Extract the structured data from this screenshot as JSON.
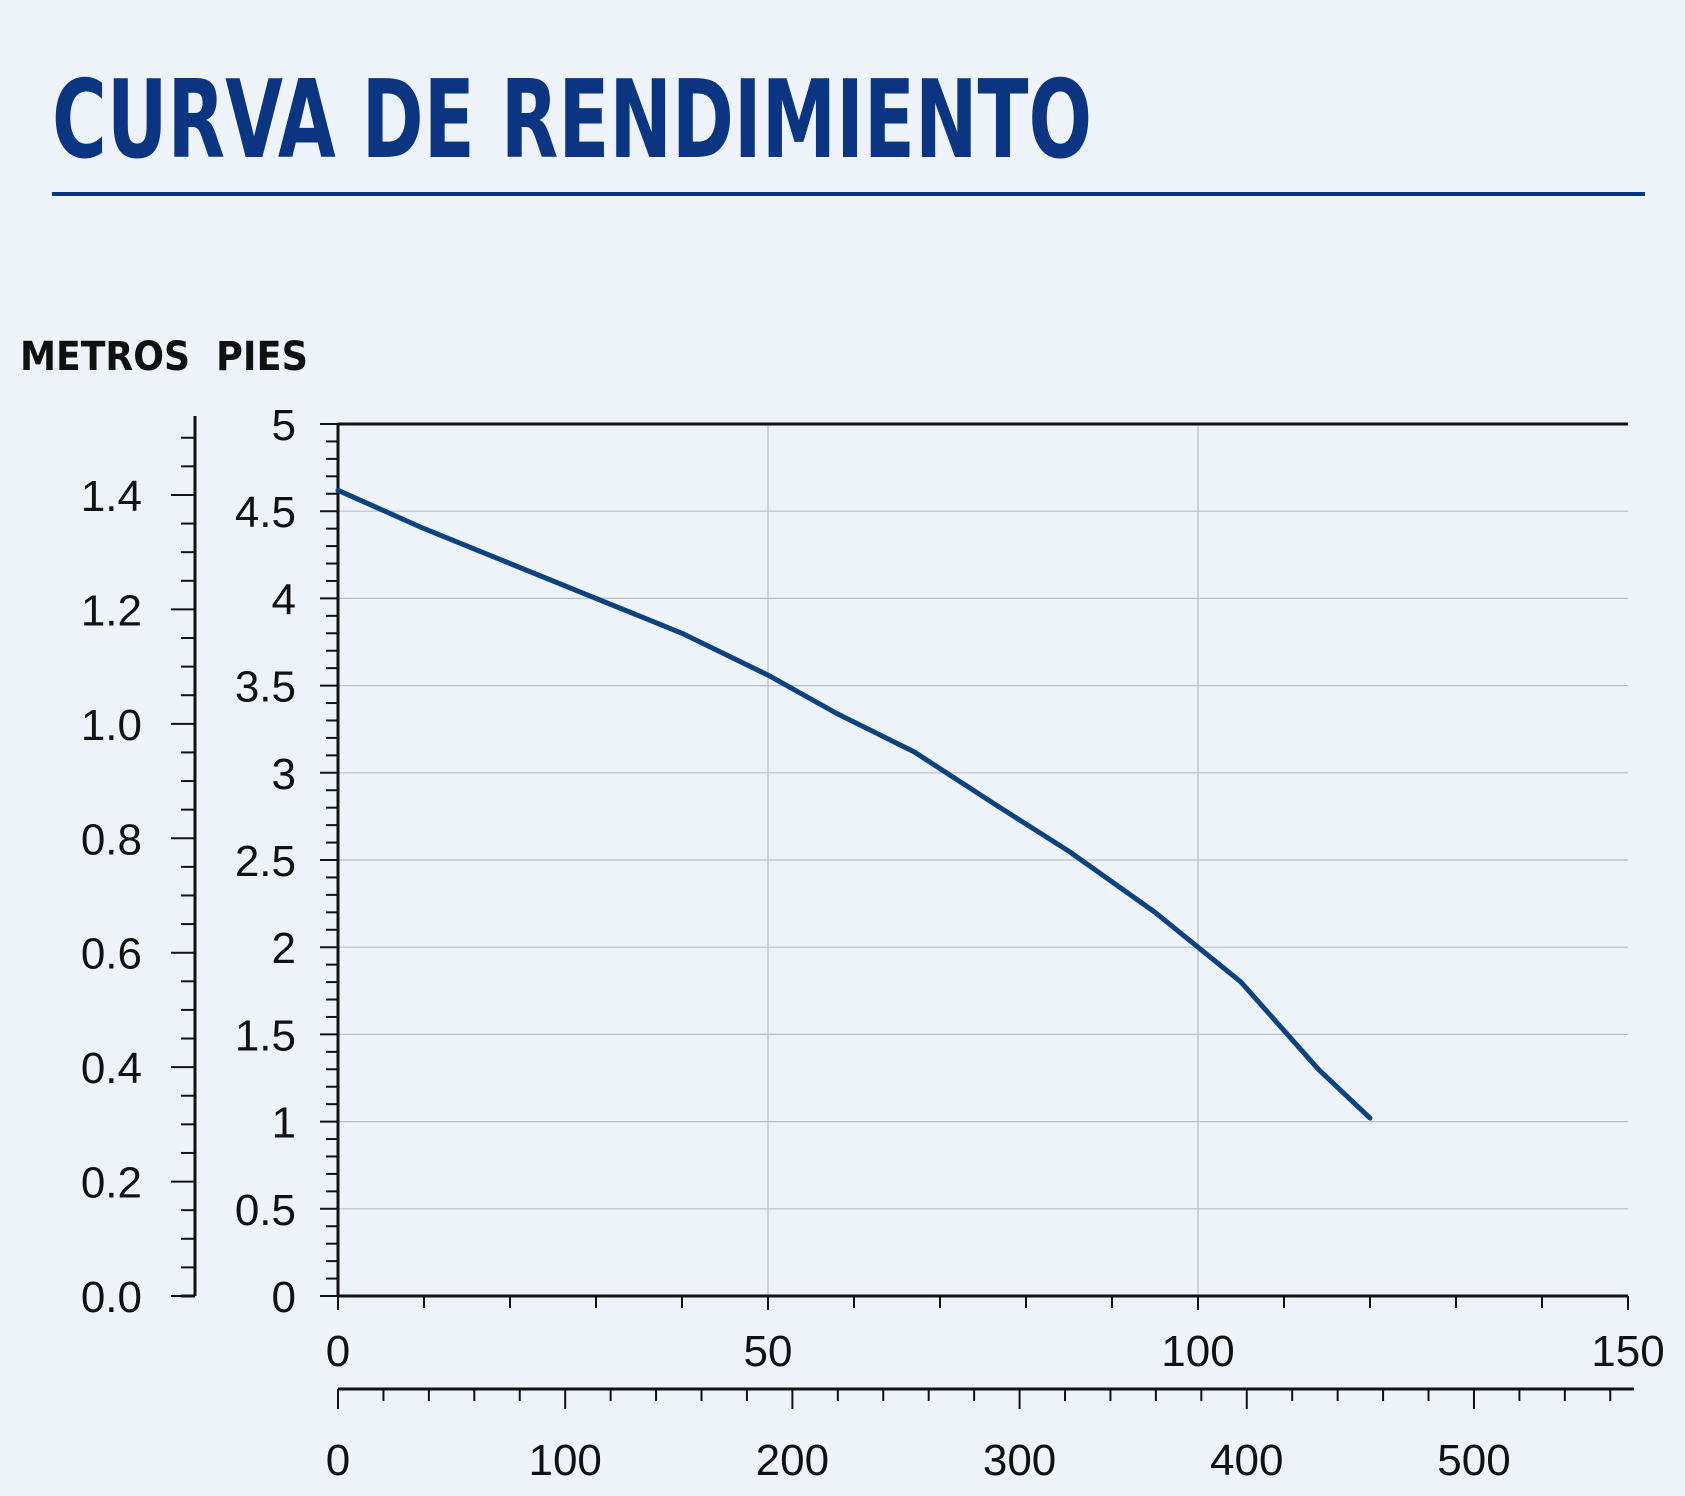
{
  "colors": {
    "background": "#eef3fa",
    "title": "#0b3481",
    "curve": "#0d4280",
    "grid": "#b9bec6",
    "axis": "#111111"
  },
  "chart_data": {
    "type": "line",
    "title": "CURVA DE RENDIMIENTO",
    "ylabel_left": "METROS",
    "ylabel_right": "PIES",
    "y_pies": {
      "lim": [
        0,
        5
      ],
      "ticks": [
        "0",
        "0.5",
        "1",
        "1.5",
        "2",
        "2.5",
        "3",
        "3.5",
        "4",
        "4.5",
        "5"
      ]
    },
    "y_metros": {
      "lim": [
        0,
        1.524
      ],
      "ticks": [
        "0.0",
        "0.2",
        "0.4",
        "0.6",
        "0.8",
        "1.0",
        "1.2",
        "1.4"
      ]
    },
    "x_top": {
      "lim": [
        0,
        150
      ],
      "ticks": [
        "0",
        "50",
        "100",
        "150"
      ]
    },
    "x_bottom": {
      "lim": [
        0,
        567.8
      ],
      "ticks": [
        "0",
        "100",
        "200",
        "300",
        "400",
        "500"
      ]
    },
    "grid": true,
    "series": [
      {
        "x": [
          0,
          10,
          20,
          30,
          40,
          50,
          58,
          67,
          77,
          85,
          95,
          105,
          114,
          120
        ],
        "y": [
          4.62,
          4.4,
          4.2,
          4.0,
          3.8,
          3.56,
          3.34,
          3.12,
          2.8,
          2.55,
          2.2,
          1.8,
          1.3,
          1.02
        ]
      }
    ]
  }
}
